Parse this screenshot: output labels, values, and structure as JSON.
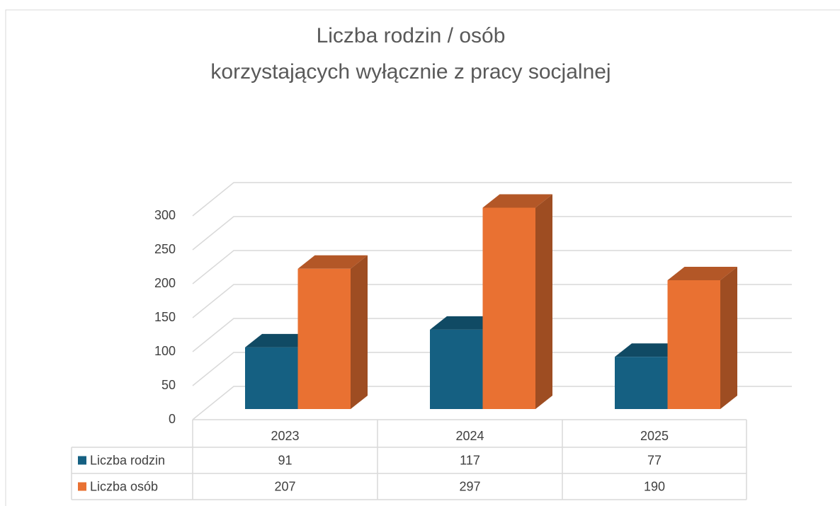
{
  "chart_data": {
    "type": "bar3d",
    "title": [
      "Liczba rodzin / osób",
      "korzystających wyłącznie z pracy socjalnej"
    ],
    "categories": [
      "2023",
      "2024",
      "2025"
    ],
    "series": [
      {
        "name": "Liczba rodzin",
        "color": "#156082",
        "values": [
          91,
          117,
          77
        ]
      },
      {
        "name": "Liczba osób",
        "color": "#e97132",
        "values": [
          207,
          297,
          190
        ]
      }
    ],
    "ylim": [
      0,
      300
    ],
    "yticks": [
      0,
      50,
      100,
      150,
      200,
      250,
      300
    ],
    "grid": true,
    "data_table": true
  }
}
